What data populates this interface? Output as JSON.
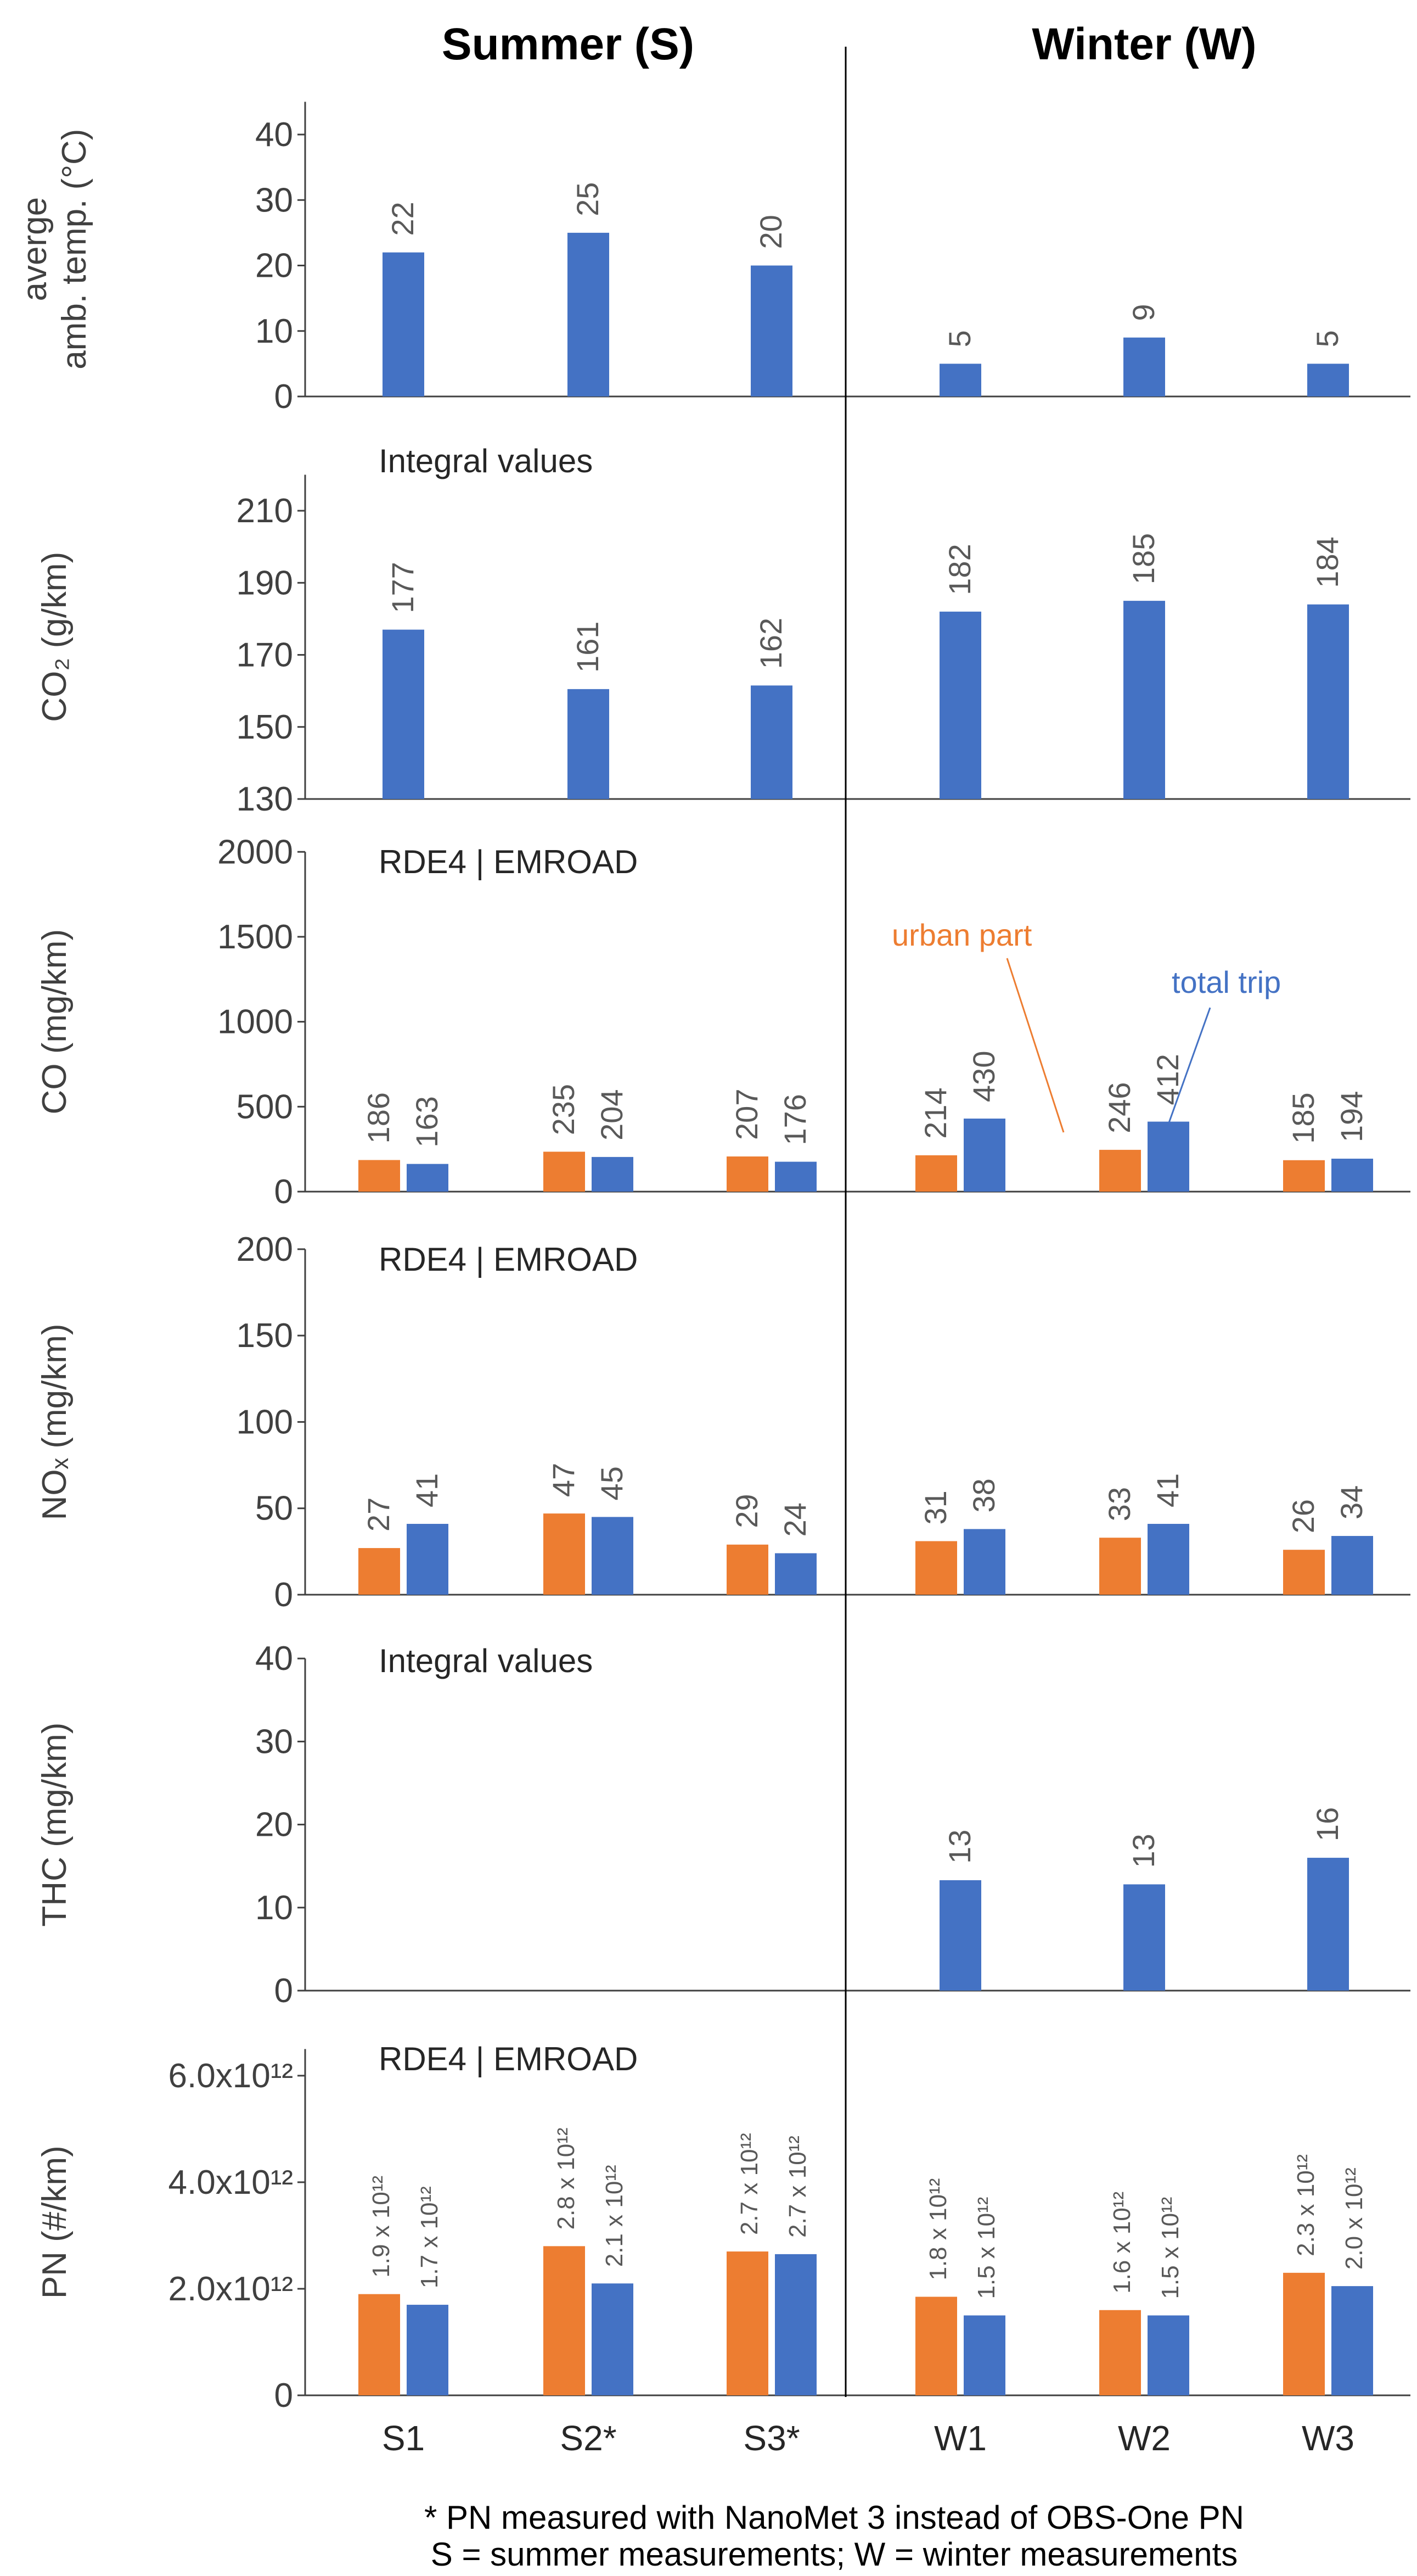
{
  "titles": {
    "summer": "Summer (S)",
    "winter": "Winter (W)"
  },
  "categories": [
    "S1",
    "S2*",
    "S3*",
    "W1",
    "W2",
    "W3"
  ],
  "colors": {
    "urban": "#ED7D31",
    "total": "#4472C4"
  },
  "legend": {
    "urban": "urban part",
    "total": "total trip"
  },
  "footnotes": [
    "* PN measured with NanoMet 3 instead of OBS-One PN",
    "S = summer measurements;  W = winter measurements"
  ],
  "chart_data": [
    {
      "type": "bar",
      "id": "temp",
      "title": "",
      "ylabel_lines": [
        "averge",
        "amb. temp. (°C)"
      ],
      "note": "",
      "ylim": [
        0,
        45
      ],
      "yticks": [
        "0",
        "10",
        "20",
        "30",
        "40"
      ],
      "series": [
        {
          "name": "total trip",
          "values": [
            22,
            25,
            20,
            5,
            9,
            5
          ],
          "labels": [
            "22",
            "25",
            "20",
            "5",
            "9",
            "5"
          ]
        }
      ]
    },
    {
      "type": "bar",
      "id": "co2",
      "title": "",
      "ylabel_lines": [
        "CO₂ (g/km)"
      ],
      "note": "Integral values",
      "ylim": [
        130,
        220
      ],
      "yticks": [
        "130",
        "150",
        "170",
        "190",
        "210"
      ],
      "series": [
        {
          "name": "total trip",
          "values": [
            177,
            160.5,
            161.5,
            182,
            185,
            184
          ],
          "labels": [
            "177",
            "161",
            "162",
            "182",
            "185",
            "184"
          ]
        }
      ]
    },
    {
      "type": "bar",
      "id": "co",
      "title": "",
      "ylabel_lines": [
        "CO (mg/km)"
      ],
      "note": "RDE4 | EMROAD",
      "ylim": [
        0,
        2000
      ],
      "yticks": [
        "0",
        "500",
        "1000",
        "1500",
        "2000"
      ],
      "series": [
        {
          "name": "urban part",
          "values": [
            186,
            235,
            207,
            214,
            246,
            185
          ],
          "labels": [
            "186",
            "235",
            "207",
            "214",
            "246",
            "185"
          ]
        },
        {
          "name": "total trip",
          "values": [
            163,
            204,
            176,
            430,
            412,
            194
          ],
          "labels": [
            "163",
            "204",
            "176",
            "430",
            "412",
            "194"
          ]
        }
      ]
    },
    {
      "type": "bar",
      "id": "nox",
      "title": "",
      "ylabel_lines": [
        "NOₓ (mg/km)"
      ],
      "note": "RDE4 | EMROAD",
      "ylim": [
        0,
        200
      ],
      "yticks": [
        "0",
        "50",
        "100",
        "150",
        "200"
      ],
      "series": [
        {
          "name": "urban part",
          "values": [
            27,
            47,
            29,
            31,
            33,
            26
          ],
          "labels": [
            "27",
            "47",
            "29",
            "31",
            "33",
            "26"
          ]
        },
        {
          "name": "total trip",
          "values": [
            41,
            45,
            24,
            38,
            41,
            34
          ],
          "labels": [
            "41",
            "45",
            "24",
            "38",
            "41",
            "34"
          ]
        }
      ]
    },
    {
      "type": "bar",
      "id": "thc",
      "title": "",
      "ylabel_lines": [
        "THC (mg/km)"
      ],
      "note": "Integral values",
      "ylim": [
        0,
        40
      ],
      "yticks": [
        "0",
        "10",
        "20",
        "30",
        "40"
      ],
      "series": [
        {
          "name": "total trip",
          "values": [
            null,
            null,
            null,
            13.3,
            12.8,
            16
          ],
          "labels": [
            "",
            "",
            "",
            "13",
            "13",
            "16"
          ]
        }
      ]
    },
    {
      "type": "bar",
      "id": "pn",
      "title": "",
      "ylabel_lines": [
        "PN (#/km)"
      ],
      "note": "RDE4 | EMROAD",
      "ylim": [
        0,
        6.5
      ],
      "yticks": [
        "0",
        "2.0x10¹²",
        "4.0x10¹²",
        "6.0x10¹²"
      ],
      "series": [
        {
          "name": "urban part",
          "values": [
            1.9,
            2.8,
            2.7,
            1.85,
            1.6,
            2.3
          ],
          "labels": [
            "1.9 x 10¹²",
            "2.8 x 10¹²",
            "2.7 x 10¹²",
            "1.8 x 10¹²",
            "1.6 x 10¹²",
            "2.3 x 10¹²"
          ]
        },
        {
          "name": "total trip",
          "values": [
            1.7,
            2.1,
            2.65,
            1.5,
            1.5,
            2.05
          ],
          "labels": [
            "1.7 x 10¹²",
            "2.1 x 10¹²",
            "2.7 x 10¹²",
            "1.5 x 10¹²",
            "1.5 x 10¹²",
            "2.0 x 10¹²"
          ]
        }
      ]
    }
  ]
}
